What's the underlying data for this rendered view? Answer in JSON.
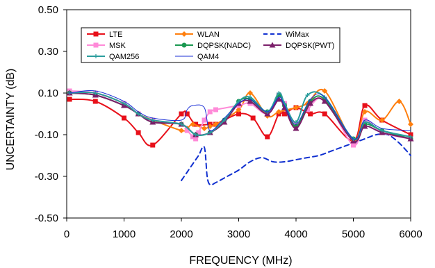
{
  "chart_data": {
    "type": "line",
    "title": "",
    "xlabel": "FREQUENCY (MHz)",
    "ylabel": "UNCERTAINTY (dB)",
    "xlim": [
      0,
      6000
    ],
    "ylim": [
      -0.5,
      0.5
    ],
    "xticks": [
      0,
      1000,
      2000,
      3000,
      4000,
      5000,
      6000
    ],
    "xtick_labels": [
      "0",
      "1000",
      "2000",
      "3000",
      "4000",
      "5000",
      "6000"
    ],
    "yticks": [
      0.5,
      0.3,
      0.1,
      -0.1,
      -0.3,
      -0.5
    ],
    "ytick_labels": [
      "0.50",
      "0.30",
      "0.10",
      "-0.10",
      "-0.30",
      "-0.50"
    ],
    "grid": false,
    "legend_position": "top-left (inside plot)",
    "series": [
      {
        "name": "LTE",
        "color": "#e8101a",
        "marker": "square",
        "dashed": false,
        "x": [
          50,
          500,
          1000,
          1250,
          1500,
          2000,
          2100,
          2250,
          2500,
          2600,
          3000,
          3250,
          3500,
          3700,
          3800,
          4000,
          4250,
          4500,
          5000,
          5200,
          5500,
          6000
        ],
        "y": [
          0.07,
          0.06,
          -0.02,
          -0.09,
          -0.15,
          0.0,
          0.0,
          -0.05,
          -0.05,
          -0.05,
          0.0,
          -0.02,
          -0.11,
          0.0,
          0.0,
          0.03,
          0.0,
          0.0,
          -0.13,
          0.04,
          -0.03,
          -0.1
        ]
      },
      {
        "name": "WLAN",
        "color": "#ff7f0e",
        "marker": "diamond",
        "dashed": false,
        "x": [
          50,
          500,
          1000,
          1250,
          1500,
          2000,
          2100,
          2200,
          2400,
          2500,
          2600,
          3000,
          3200,
          3500,
          3700,
          4000,
          4200,
          4500,
          5000,
          5200,
          5500,
          5800,
          6000
        ],
        "y": [
          0.1,
          0.1,
          0.05,
          0.0,
          -0.03,
          -0.08,
          -0.07,
          -0.05,
          -0.07,
          -0.06,
          -0.05,
          0.02,
          0.1,
          -0.01,
          0.01,
          0.03,
          0.05,
          0.11,
          -0.13,
          0.01,
          -0.03,
          0.06,
          -0.05
        ]
      },
      {
        "name": "WiMax",
        "color": "#1030d0",
        "marker": "none",
        "dashed": true,
        "x": [
          2000,
          2100,
          2200,
          2300,
          2400,
          2450,
          2500,
          2600,
          2800,
          3000,
          3200,
          3400,
          3600,
          3800,
          4000,
          4200,
          4400,
          4600,
          4800,
          5000,
          5200,
          5400,
          5600,
          5800,
          6000
        ],
        "y": [
          -0.32,
          -0.28,
          -0.24,
          -0.2,
          -0.16,
          -0.3,
          -0.34,
          -0.33,
          -0.3,
          -0.27,
          -0.23,
          -0.21,
          -0.23,
          -0.23,
          -0.22,
          -0.21,
          -0.2,
          -0.18,
          -0.16,
          -0.14,
          -0.12,
          -0.1,
          -0.1,
          -0.14,
          -0.2
        ]
      },
      {
        "name": "MSK",
        "color": "#ff8ad8",
        "marker": "square",
        "dashed": false,
        "x": [
          50,
          500,
          1000,
          1250,
          1500,
          2000,
          2100,
          2200,
          2250,
          2300,
          2400,
          2500,
          2600,
          3000,
          3200,
          3500,
          3700,
          3800,
          4000,
          4200,
          4500,
          5000,
          5200,
          5500,
          6000
        ],
        "y": [
          0.11,
          0.1,
          0.05,
          0.0,
          -0.03,
          -0.05,
          -0.08,
          -0.11,
          -0.12,
          -0.09,
          -0.03,
          0.01,
          0.02,
          0.04,
          0.05,
          0.0,
          0.09,
          0.05,
          -0.05,
          0.02,
          0.07,
          -0.15,
          -0.03,
          -0.09,
          -0.12
        ]
      },
      {
        "name": "DQPSK(NADC)",
        "color": "#1a9850",
        "marker": "circle",
        "dashed": false,
        "x": [
          50,
          500,
          1000,
          1250,
          1500,
          2000,
          2250,
          2500,
          2750,
          3000,
          3200,
          3500,
          3700,
          3800,
          4000,
          4250,
          4500,
          5000,
          5200,
          5500,
          6000
        ],
        "y": [
          0.1,
          0.09,
          0.04,
          0.0,
          -0.04,
          -0.05,
          -0.1,
          -0.09,
          -0.03,
          0.06,
          0.07,
          0.01,
          0.09,
          0.04,
          -0.06,
          0.06,
          0.07,
          -0.12,
          -0.05,
          -0.08,
          -0.12
        ]
      },
      {
        "name": "DQPSK(PWT)",
        "color": "#7b1f6a",
        "marker": "triangle",
        "dashed": false,
        "x": [
          50,
          500,
          1000,
          1250,
          1500,
          2000,
          2250,
          2500,
          2750,
          3000,
          3200,
          3500,
          3700,
          3800,
          4000,
          4250,
          4500,
          5000,
          5200,
          5500,
          6000
        ],
        "y": [
          0.1,
          0.09,
          0.04,
          0.0,
          -0.04,
          -0.05,
          -0.1,
          -0.09,
          -0.04,
          0.05,
          0.06,
          0.0,
          0.07,
          0.03,
          -0.07,
          0.05,
          0.06,
          -0.13,
          -0.06,
          -0.09,
          -0.12
        ]
      },
      {
        "name": "QAM256",
        "color": "#2a9d9d",
        "marker": "plus",
        "dashed": false,
        "x": [
          50,
          500,
          1000,
          1250,
          1500,
          2000,
          2250,
          2500,
          2750,
          3000,
          3200,
          3500,
          3700,
          3800,
          4000,
          4200,
          4500,
          5000,
          5200,
          5500,
          6000
        ],
        "y": [
          0.1,
          0.1,
          0.05,
          0.0,
          -0.03,
          -0.05,
          -0.1,
          -0.09,
          -0.03,
          0.06,
          0.08,
          0.01,
          0.1,
          0.05,
          -0.04,
          0.09,
          0.08,
          -0.12,
          -0.04,
          -0.08,
          -0.11
        ]
      },
      {
        "name": "QAM4",
        "color": "#1a2fd6",
        "marker": "none",
        "dashed": false,
        "x": [
          50,
          500,
          1000,
          1250,
          1500,
          2000,
          2100,
          2200,
          2400,
          2500,
          2750,
          3000,
          3200,
          3500,
          3700,
          3800,
          4000,
          4250,
          4500,
          5000,
          5200,
          5500,
          6000
        ],
        "y": [
          0.1,
          0.11,
          0.06,
          0.01,
          -0.02,
          -0.03,
          0.02,
          0.04,
          0.03,
          -0.08,
          -0.02,
          0.05,
          0.07,
          0.01,
          0.08,
          0.04,
          -0.05,
          0.07,
          0.08,
          -0.12,
          -0.03,
          -0.07,
          -0.08
        ]
      }
    ]
  }
}
